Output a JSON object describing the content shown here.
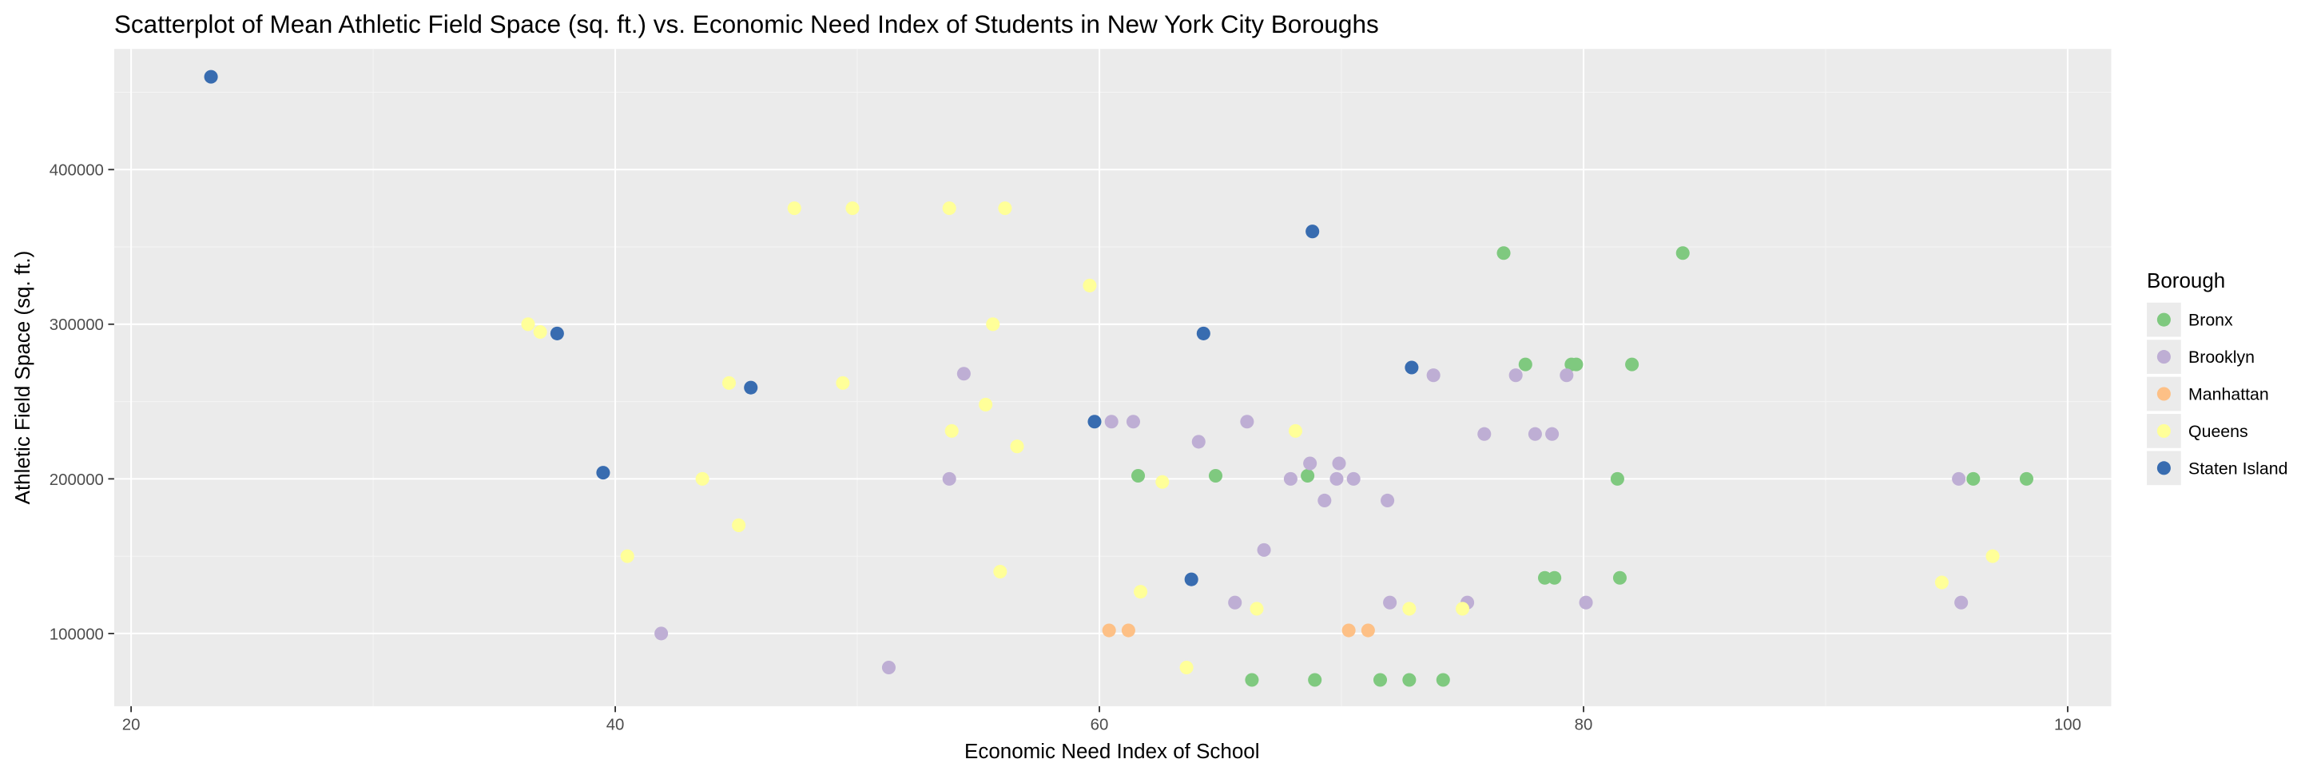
{
  "chart_data": {
    "type": "scatter",
    "title": "Scatterplot of Mean Athletic Field Space (sq. ft.) vs. Economic Need Index of Students in New York City Boroughs",
    "xlabel": "Economic Need Index of School",
    "ylabel": "Athletic Field Space (sq. ft.)",
    "xlim": [
      19.3,
      101.8
    ],
    "ylim": [
      53000,
      478000
    ],
    "x_ticks": [
      20,
      40,
      60,
      80,
      100
    ],
    "y_ticks": [
      100000,
      200000,
      300000,
      400000
    ],
    "x_tick_labels": [
      "20",
      "40",
      "60",
      "80",
      "100"
    ],
    "y_tick_labels": [
      "100000",
      "200000",
      "300000",
      "400000"
    ],
    "grid": true,
    "legend": {
      "title": "Borough",
      "position": "right"
    },
    "colors": {
      "panel": "#EBEBEB",
      "grid_major": "#FFFFFF",
      "grid_minor": "#F5F5F5",
      "tick_text": "#4D4D4D",
      "tick_mark": "#333333"
    },
    "series": [
      {
        "name": "Bronx",
        "color": "#7FC97F",
        "points": [
          [
            61.6,
            202000
          ],
          [
            64.8,
            202000
          ],
          [
            68.6,
            202000
          ],
          [
            66.3,
            70000
          ],
          [
            68.9,
            70000
          ],
          [
            71.6,
            70000
          ],
          [
            72.8,
            70000
          ],
          [
            74.2,
            70000
          ],
          [
            76.7,
            346000
          ],
          [
            77.6,
            274000
          ],
          [
            79.5,
            274000
          ],
          [
            79.7,
            274000
          ],
          [
            82.0,
            274000
          ],
          [
            78.4,
            136000
          ],
          [
            78.8,
            136000
          ],
          [
            81.5,
            136000
          ],
          [
            81.4,
            200000
          ],
          [
            84.1,
            346000
          ],
          [
            96.1,
            200000
          ],
          [
            98.3,
            200000
          ]
        ]
      },
      {
        "name": "Brooklyn",
        "color": "#BEAED4",
        "points": [
          [
            41.9,
            100000
          ],
          [
            51.3,
            78000
          ],
          [
            53.8,
            200000
          ],
          [
            54.4,
            268000
          ],
          [
            60.5,
            237000
          ],
          [
            61.4,
            237000
          ],
          [
            64.1,
            224000
          ],
          [
            65.6,
            120000
          ],
          [
            66.1,
            237000
          ],
          [
            66.8,
            154000
          ],
          [
            67.9,
            200000
          ],
          [
            68.7,
            210000
          ],
          [
            69.3,
            186000
          ],
          [
            69.8,
            200000
          ],
          [
            69.9,
            210000
          ],
          [
            70.5,
            200000
          ],
          [
            71.9,
            186000
          ],
          [
            72.0,
            120000
          ],
          [
            73.8,
            267000
          ],
          [
            75.2,
            120000
          ],
          [
            75.9,
            229000
          ],
          [
            77.2,
            267000
          ],
          [
            78.0,
            229000
          ],
          [
            78.7,
            229000
          ],
          [
            79.3,
            267000
          ],
          [
            80.1,
            120000
          ],
          [
            95.6,
            120000
          ],
          [
            95.5,
            200000
          ]
        ]
      },
      {
        "name": "Manhattan",
        "color": "#FDC086",
        "points": [
          [
            60.4,
            102000
          ],
          [
            61.2,
            102000
          ],
          [
            70.3,
            102000
          ],
          [
            71.1,
            102000
          ]
        ]
      },
      {
        "name": "Queens",
        "color": "#FFFF99",
        "points": [
          [
            36.4,
            300000
          ],
          [
            36.9,
            295000
          ],
          [
            40.5,
            150000
          ],
          [
            43.6,
            200000
          ],
          [
            44.7,
            262000
          ],
          [
            45.1,
            170000
          ],
          [
            47.4,
            375000
          ],
          [
            49.4,
            262000
          ],
          [
            49.8,
            375000
          ],
          [
            53.8,
            375000
          ],
          [
            53.9,
            231000
          ],
          [
            55.3,
            248000
          ],
          [
            55.6,
            300000
          ],
          [
            55.9,
            140000
          ],
          [
            56.1,
            375000
          ],
          [
            56.6,
            221000
          ],
          [
            59.6,
            325000
          ],
          [
            61.7,
            127000
          ],
          [
            62.6,
            198000
          ],
          [
            63.6,
            78000
          ],
          [
            66.5,
            116000
          ],
          [
            68.1,
            231000
          ],
          [
            72.8,
            116000
          ],
          [
            75.0,
            116000
          ],
          [
            94.8,
            133000
          ],
          [
            96.9,
            150000
          ]
        ]
      },
      {
        "name": "Staten Island",
        "color": "#386CB0",
        "points": [
          [
            23.3,
            460000
          ],
          [
            37.6,
            294000
          ],
          [
            39.5,
            204000
          ],
          [
            45.6,
            259000
          ],
          [
            59.8,
            237000
          ],
          [
            63.8,
            135000
          ],
          [
            64.3,
            294000
          ],
          [
            68.8,
            360000
          ],
          [
            72.9,
            272000
          ]
        ]
      }
    ]
  }
}
